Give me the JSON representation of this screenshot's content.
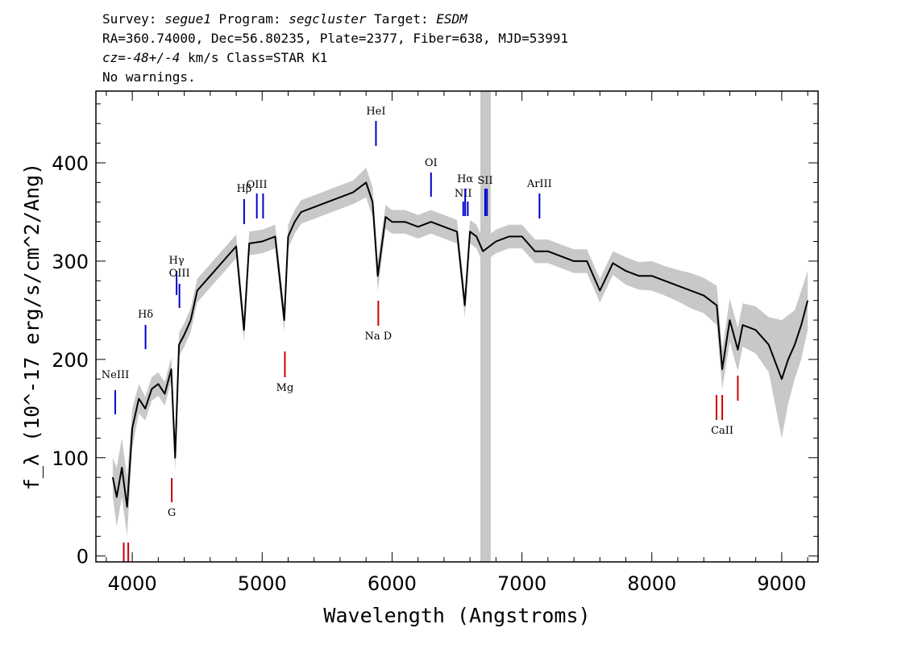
{
  "header": {
    "line1_prefix": "Survey: ",
    "survey": "segue1",
    "line1_mid": " Program: ",
    "program": "segcluster",
    "line1_mid2": " Target: ",
    "target": "ESDM",
    "line2": "RA=360.74000, Dec=56.80235, Plate=2377, Fiber=638, MJD=53991",
    "cz": "cz=-48+/-4",
    "line3_rest": " km/s Class=STAR K1",
    "line4": "No warnings."
  },
  "chart_data": {
    "type": "line",
    "title": "Survey: segue1 Program: segcluster Target: ESDM",
    "xlabel": "Wavelength (Angstroms)",
    "ylabel": "f_λ (10^-17 erg/s/cm^2/Ang)",
    "xlim": [
      3720,
      9280
    ],
    "ylim": [
      -6,
      473
    ],
    "x_ticks": [
      4000,
      5000,
      6000,
      7000,
      8000,
      9000
    ],
    "y_ticks": [
      0,
      100,
      200,
      300,
      400
    ],
    "masked_region": [
      6680,
      6760
    ],
    "series": [
      {
        "name": "flux",
        "color": "#000000",
        "x": [
          3850,
          3880,
          3920,
          3960,
          4000,
          4050,
          4100,
          4150,
          4200,
          4250,
          4300,
          4330,
          4360,
          4400,
          4450,
          4500,
          4600,
          4700,
          4800,
          4860,
          4900,
          5000,
          5100,
          5170,
          5200,
          5250,
          5300,
          5400,
          5500,
          5600,
          5700,
          5800,
          5850,
          5890,
          5950,
          6000,
          6100,
          6200,
          6300,
          6400,
          6500,
          6560,
          6600,
          6650,
          6700,
          6800,
          6900,
          7000,
          7100,
          7200,
          7300,
          7400,
          7500,
          7600,
          7700,
          7800,
          7900,
          8000,
          8100,
          8200,
          8300,
          8400,
          8500,
          8542,
          8600,
          8662,
          8700,
          8800,
          8900,
          9000,
          9050,
          9100,
          9150,
          9200
        ],
        "values": [
          80,
          60,
          90,
          50,
          130,
          160,
          150,
          170,
          175,
          165,
          190,
          100,
          215,
          225,
          240,
          270,
          285,
          300,
          315,
          230,
          318,
          320,
          325,
          240,
          325,
          340,
          350,
          355,
          360,
          365,
          370,
          380,
          360,
          285,
          345,
          340,
          340,
          335,
          340,
          335,
          330,
          255,
          330,
          325,
          310,
          320,
          325,
          325,
          310,
          310,
          305,
          300,
          300,
          270,
          298,
          290,
          285,
          285,
          280,
          275,
          270,
          265,
          255,
          190,
          240,
          210,
          235,
          230,
          215,
          180,
          200,
          215,
          235,
          260
        ]
      },
      {
        "name": "error",
        "color": "#c8c8c8",
        "values": [
          20,
          30,
          30,
          30,
          20,
          15,
          12,
          12,
          12,
          12,
          12,
          14,
          12,
          12,
          12,
          12,
          12,
          12,
          12,
          12,
          12,
          12,
          12,
          12,
          12,
          12,
          12,
          12,
          12,
          12,
          12,
          15,
          15,
          15,
          12,
          12,
          12,
          12,
          12,
          12,
          12,
          12,
          12,
          12,
          12,
          12,
          12,
          12,
          12,
          12,
          12,
          12,
          12,
          12,
          12,
          14,
          14,
          15,
          15,
          16,
          18,
          18,
          20,
          20,
          22,
          22,
          22,
          24,
          28,
          60,
          45,
          35,
          35,
          30
        ]
      }
    ],
    "emission_lines": [
      {
        "name": "NeIII",
        "x": 3869
      },
      {
        "name": "Hδ",
        "x": 4102
      },
      {
        "name": "Hγ",
        "x": 4341
      },
      {
        "name": "OIII",
        "x": 4363
      },
      {
        "name": "Hβ",
        "x": 4861
      },
      {
        "name": "OIII",
        "x": 4959
      },
      {
        "name": "OIII",
        "x": 5007
      },
      {
        "name": "HeI",
        "x": 5876
      },
      {
        "name": "OI",
        "x": 6300
      },
      {
        "name": "NII",
        "x": 6548
      },
      {
        "name": "Hα",
        "x": 6563
      },
      {
        "name": "NII",
        "x": 6583
      },
      {
        "name": "SII",
        "x": 6717
      },
      {
        "name": "SII",
        "x": 6731
      },
      {
        "name": "ArIII",
        "x": 7135
      }
    ],
    "absorption_lines": [
      {
        "name": "",
        "x": 3934
      },
      {
        "name": "",
        "x": 3969
      },
      {
        "name": "G",
        "x": 4304
      },
      {
        "name": "Mg",
        "x": 5175
      },
      {
        "name": "Na D",
        "x": 5894
      },
      {
        "name": "",
        "x": 8498
      },
      {
        "name": "CaII",
        "x": 8542
      },
      {
        "name": "",
        "x": 8662
      }
    ]
  }
}
